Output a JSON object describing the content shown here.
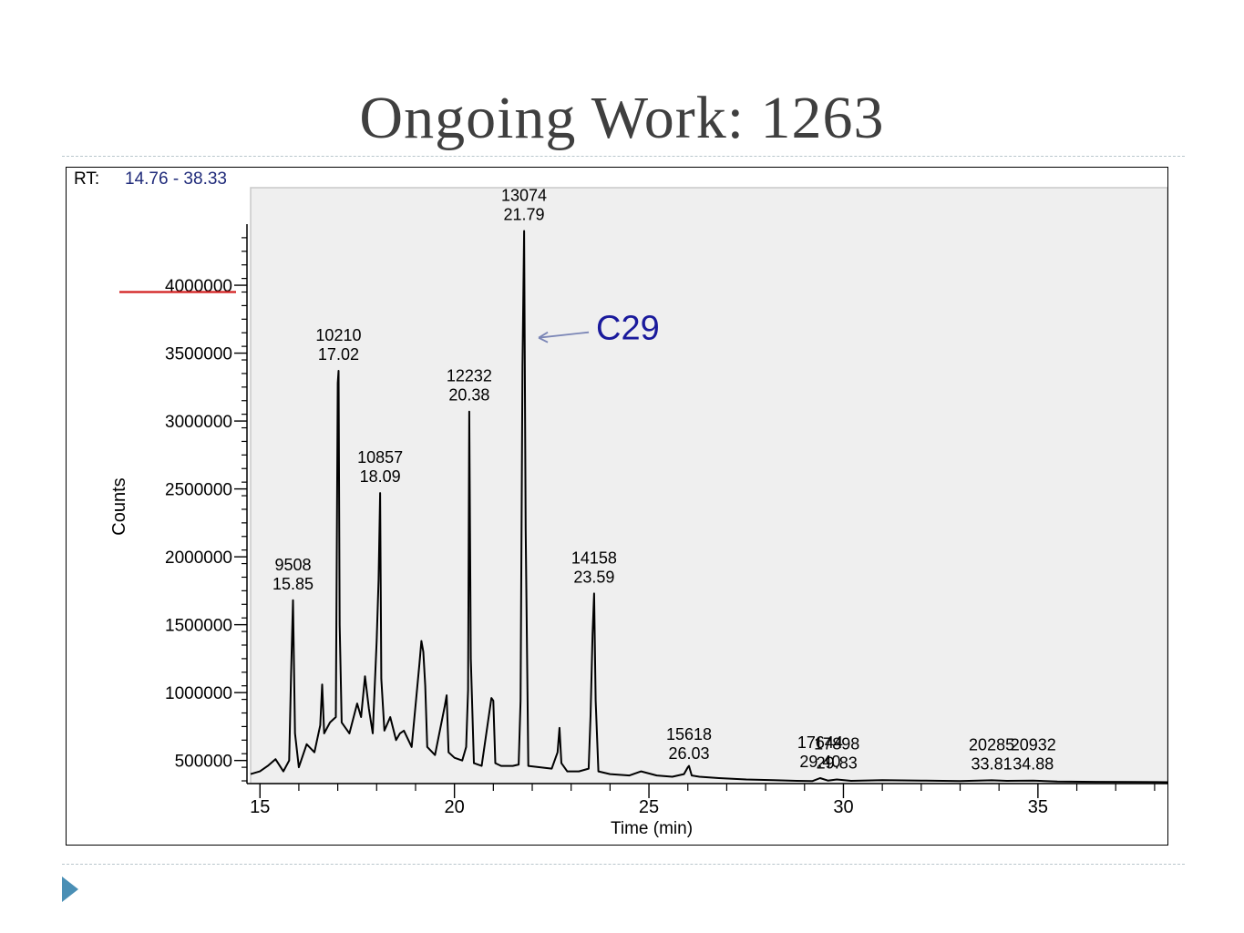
{
  "slide": {
    "title": "Ongoing Work: 1263"
  },
  "chart_data": {
    "type": "line",
    "title": "",
    "rt_label": "RT:",
    "rt_range": "14.76 - 38.33",
    "xlabel": "Time (min)",
    "ylabel": "Counts",
    "xlim": [
      14.76,
      38.33
    ],
    "ylim": [
      330000,
      4450000
    ],
    "x_ticks": [
      15,
      20,
      25,
      30,
      35
    ],
    "y_ticks": [
      500000,
      1000000,
      1500000,
      2000000,
      2500000,
      3000000,
      3500000,
      4000000
    ],
    "y_tick_labels": [
      "500000",
      "1000000",
      "1500000",
      "2000000",
      "2500000",
      "3000000",
      "3500000",
      "4000000"
    ],
    "grid": false,
    "peak_labels": [
      {
        "scan": "9508",
        "time": "15.85",
        "x": 15.85,
        "y": 1680000
      },
      {
        "scan": "10210",
        "time": "17.02",
        "x": 17.02,
        "y": 3370000
      },
      {
        "scan": "10857",
        "time": "18.09",
        "x": 18.09,
        "y": 2470000
      },
      {
        "scan": "12232",
        "time": "20.38",
        "x": 20.38,
        "y": 3070000
      },
      {
        "scan": "13074",
        "time": "21.79",
        "x": 21.79,
        "y": 4400000
      },
      {
        "scan": "14158",
        "time": "23.59",
        "x": 23.59,
        "y": 1730000
      },
      {
        "scan": "15618",
        "time": "26.03",
        "x": 26.03,
        "y": 430000
      },
      {
        "scan": "17644",
        "time": "29.40",
        "x": 29.4,
        "y": 370000
      },
      {
        "scan": "17898",
        "time": "29.83",
        "x": 29.83,
        "y": 360000
      },
      {
        "scan": "20285",
        "time": "33.81",
        "x": 33.81,
        "y": 355000
      },
      {
        "scan": "20932",
        "time": "34.88",
        "x": 34.88,
        "y": 355000
      }
    ],
    "annotation": {
      "text": "C29",
      "x": 21.79,
      "y": 3600000,
      "color": "#1a1a9c"
    },
    "reference_line": {
      "y": 3950000,
      "color": "#d21f1f"
    },
    "series": [
      {
        "color": "#000000",
        "x": [
          14.76,
          15.0,
          15.2,
          15.4,
          15.6,
          15.75,
          15.8,
          15.85,
          15.9,
          16.0,
          16.2,
          16.4,
          16.55,
          16.6,
          16.65,
          16.8,
          16.95,
          17.0,
          17.02,
          17.05,
          17.1,
          17.3,
          17.5,
          17.6,
          17.7,
          17.8,
          17.9,
          18.0,
          18.05,
          18.09,
          18.12,
          18.2,
          18.35,
          18.5,
          18.6,
          18.7,
          18.9,
          19.1,
          19.15,
          19.2,
          19.25,
          19.3,
          19.5,
          19.75,
          19.8,
          19.85,
          20.0,
          20.2,
          20.3,
          20.35,
          20.38,
          20.42,
          20.5,
          20.7,
          20.95,
          21.0,
          21.05,
          21.2,
          21.5,
          21.65,
          21.7,
          21.75,
          21.79,
          21.83,
          21.9,
          22.2,
          22.5,
          22.65,
          22.7,
          22.75,
          22.9,
          23.2,
          23.45,
          23.5,
          23.55,
          23.59,
          23.63,
          23.7,
          24.0,
          24.5,
          24.8,
          25.2,
          25.6,
          25.9,
          26.0,
          26.03,
          26.1,
          26.3,
          26.8,
          27.5,
          28.2,
          28.8,
          29.2,
          29.4,
          29.6,
          29.83,
          30.2,
          31.0,
          32.0,
          33.0,
          33.81,
          34.2,
          34.88,
          35.5,
          36.5,
          37.5,
          38.33
        ],
        "y": [
          400000,
          420000,
          460000,
          510000,
          420000,
          500000,
          1140000,
          1680000,
          700000,
          450000,
          620000,
          560000,
          760000,
          1060000,
          700000,
          780000,
          820000,
          3280000,
          3370000,
          1500000,
          780000,
          700000,
          920000,
          820000,
          1120000,
          880000,
          700000,
          1380000,
          1830000,
          2470000,
          1100000,
          720000,
          820000,
          650000,
          700000,
          720000,
          600000,
          1210000,
          1380000,
          1300000,
          1050000,
          600000,
          540000,
          900000,
          980000,
          560000,
          520000,
          500000,
          600000,
          1020000,
          3070000,
          1250000,
          480000,
          460000,
          960000,
          940000,
          480000,
          460000,
          460000,
          470000,
          940000,
          3400000,
          4400000,
          2200000,
          460000,
          450000,
          440000,
          560000,
          740000,
          480000,
          420000,
          420000,
          440000,
          830000,
          1430000,
          1730000,
          940000,
          420000,
          400000,
          390000,
          420000,
          390000,
          380000,
          400000,
          450000,
          460000,
          390000,
          380000,
          370000,
          360000,
          355000,
          350000,
          348000,
          370000,
          352000,
          360000,
          350000,
          355000,
          352000,
          348000,
          354000,
          350000,
          352000,
          345000,
          343000,
          342000,
          340000
        ]
      }
    ]
  }
}
